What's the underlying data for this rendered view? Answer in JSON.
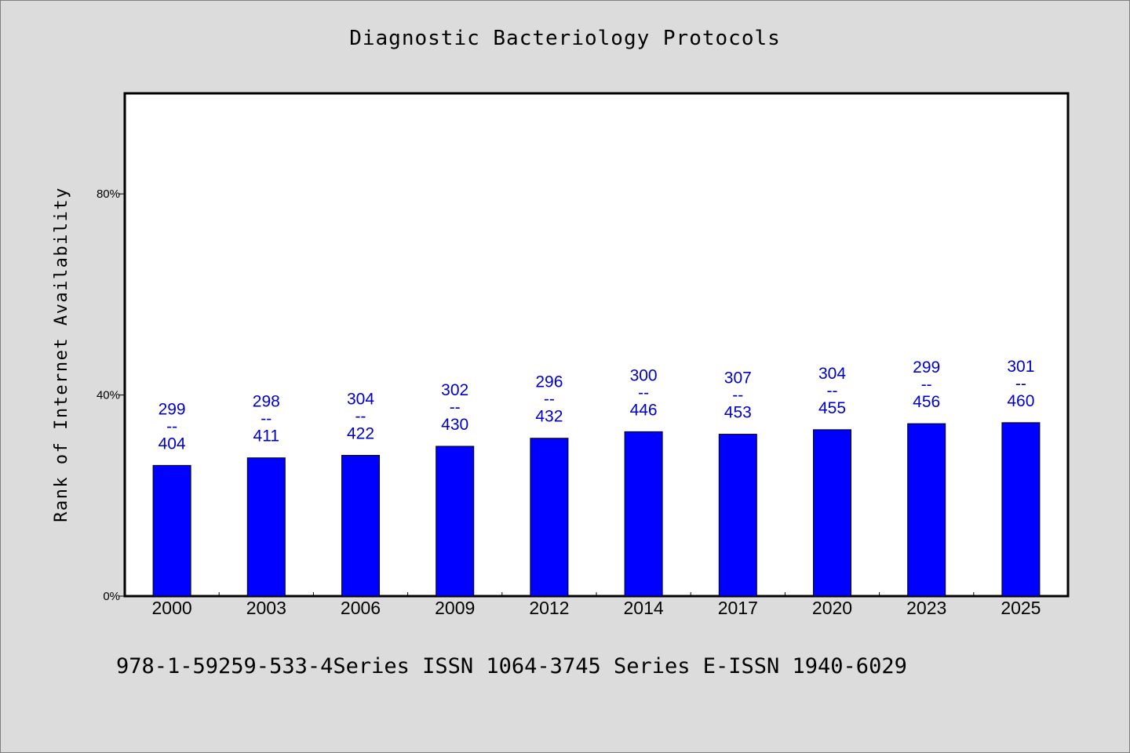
{
  "chart_data": {
    "type": "bar",
    "title": "Diagnostic Bacteriology Protocols",
    "xlabel": "",
    "ylabel": "Rank of Internet Availability",
    "categories": [
      "2000",
      "2003",
      "2006",
      "2009",
      "2012",
      "2014",
      "2017",
      "2020",
      "2023",
      "2025"
    ],
    "values": [
      26.0,
      27.5,
      28.0,
      29.8,
      31.4,
      32.7,
      32.2,
      33.1,
      34.3,
      34.5
    ],
    "bar_labels": [
      [
        "299",
        "--",
        "404"
      ],
      [
        "298",
        "--",
        "411"
      ],
      [
        "304",
        "--",
        "422"
      ],
      [
        "302",
        "--",
        "430"
      ],
      [
        "296",
        "--",
        "432"
      ],
      [
        "300",
        "--",
        "446"
      ],
      [
        "307",
        "--",
        "453"
      ],
      [
        "304",
        "--",
        "455"
      ],
      [
        "299",
        "--",
        "456"
      ],
      [
        "301",
        "--",
        "460"
      ]
    ],
    "yticks": [
      "0%",
      "40%",
      "80%"
    ],
    "ytick_values": [
      0,
      40,
      80
    ],
    "ylim": [
      0,
      100
    ],
    "grid": false,
    "colors": {
      "bar": "#0000ff",
      "label": "#0000cd",
      "background": "#dcdcdc",
      "plot": "#ffffff"
    }
  },
  "footer": "978-1-59259-533-4Series ISSN 1064-3745 Series E-ISSN 1940-6029"
}
